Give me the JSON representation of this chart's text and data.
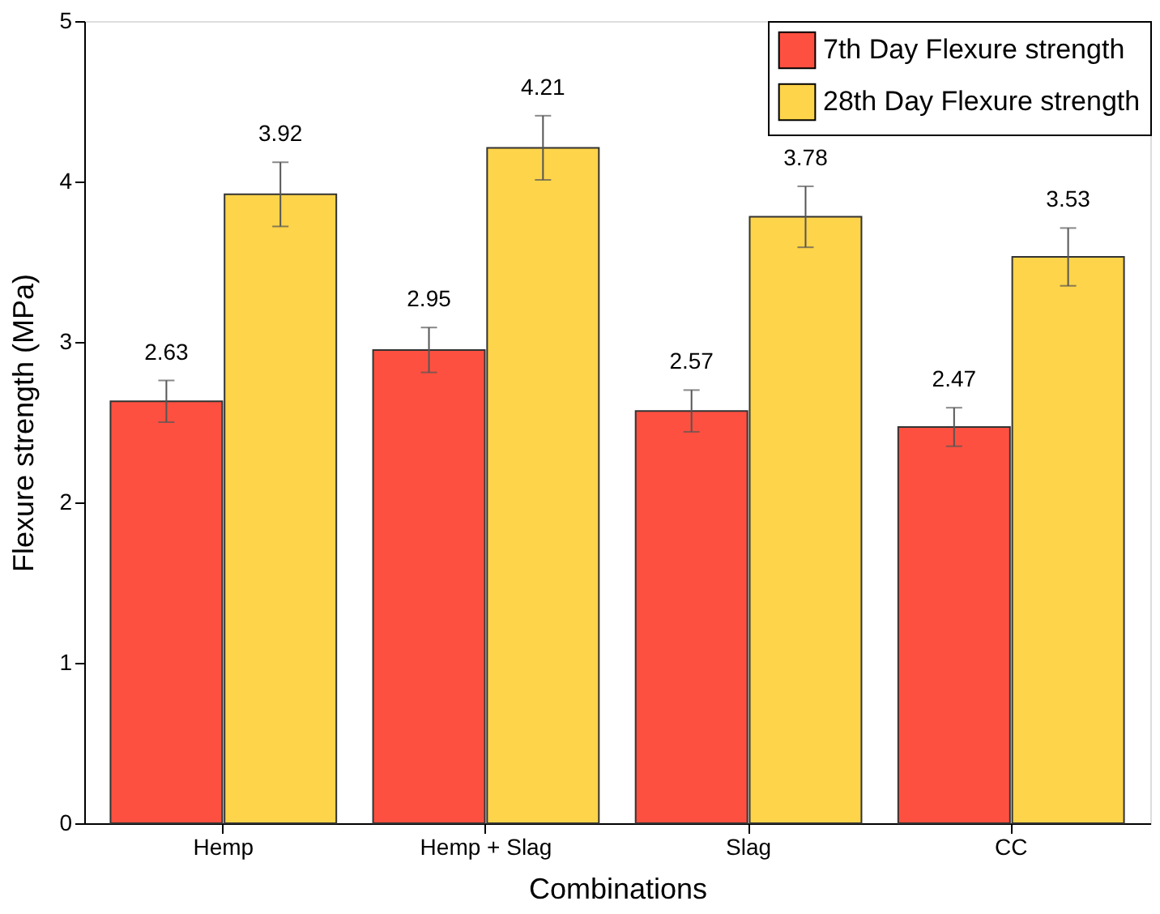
{
  "chart_data": {
    "type": "bar",
    "xlabel": "Combinations",
    "ylabel": "Flexure strength (MPa)",
    "categories": [
      "Hemp",
      "Hemp + Slag",
      "Slag",
      "CC"
    ],
    "series": [
      {
        "name": "7th Day Flexure strength",
        "color": "#fe5040",
        "values": [
          2.63,
          2.95,
          2.57,
          2.47
        ],
        "errors": [
          0.13,
          0.14,
          0.13,
          0.12
        ]
      },
      {
        "name": "28th Day Flexure strength",
        "color": "#fed44a",
        "values": [
          3.92,
          4.21,
          3.78,
          3.53
        ],
        "errors": [
          0.2,
          0.2,
          0.19,
          0.18
        ]
      }
    ],
    "ylim": [
      0,
      5
    ],
    "yticks": [
      0,
      1,
      2,
      3,
      4,
      5
    ],
    "grid": false,
    "legend": "top right",
    "data_labels": true
  }
}
